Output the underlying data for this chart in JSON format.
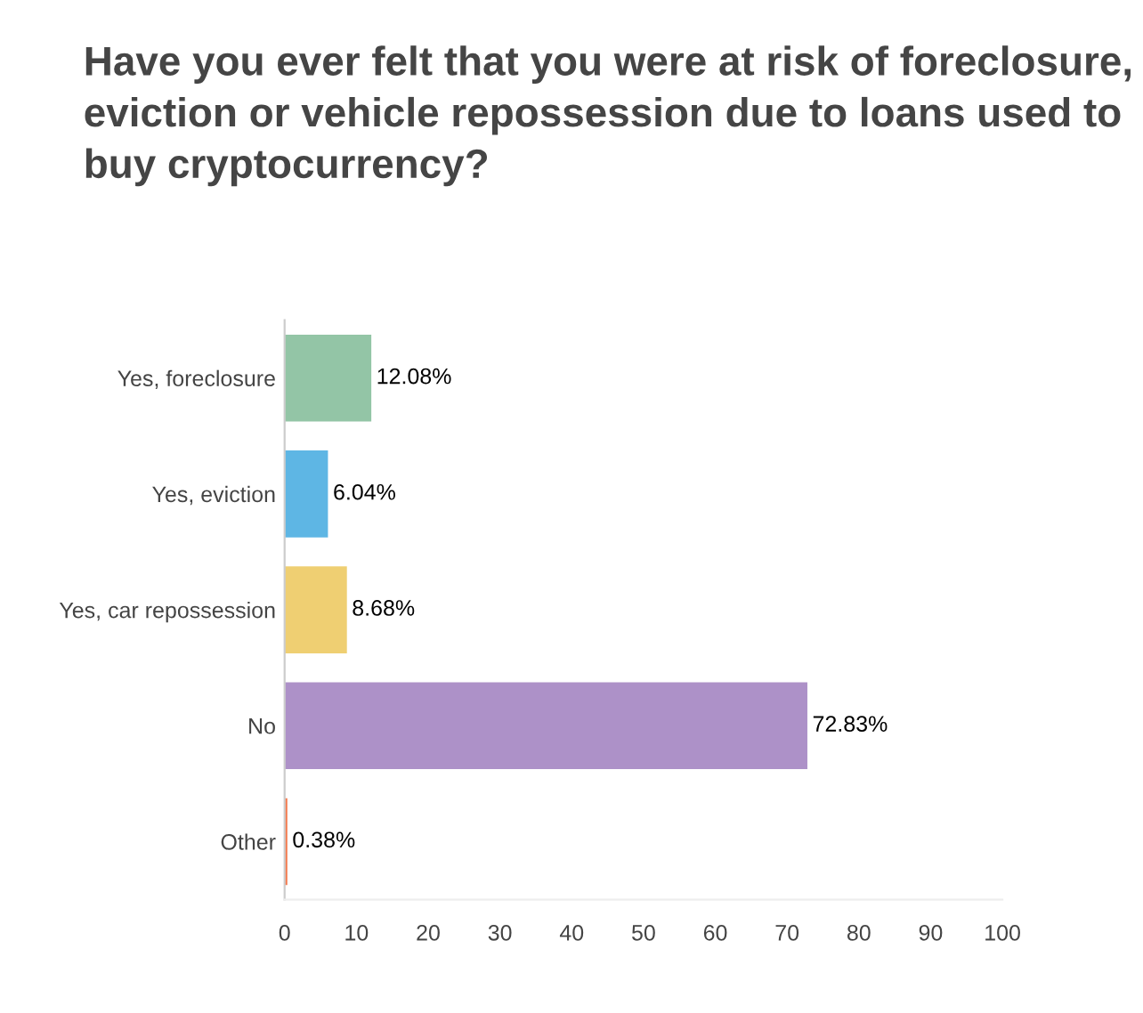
{
  "chart_data": {
    "type": "bar",
    "orientation": "horizontal",
    "title": "Have you ever felt that you were at risk of foreclosure, eviction or vehicle repossession due to loans used to buy cryptocurrency?",
    "categories": [
      "Yes, foreclosure",
      "Yes, eviction",
      "Yes, car repossession",
      "No",
      "Other"
    ],
    "values": [
      12.08,
      6.04,
      8.68,
      72.83,
      0.38
    ],
    "value_labels": [
      "12.08%",
      "6.04%",
      "8.68%",
      "72.83%",
      "0.38%"
    ],
    "colors": [
      "#93c5a6",
      "#5eb6e4",
      "#efcf72",
      "#ad91c8",
      "#f47a4e"
    ],
    "xlim": [
      0,
      100
    ],
    "xticks": [
      0,
      10,
      20,
      30,
      40,
      50,
      60,
      70,
      80,
      90,
      100
    ],
    "grid": false,
    "legend": false
  }
}
